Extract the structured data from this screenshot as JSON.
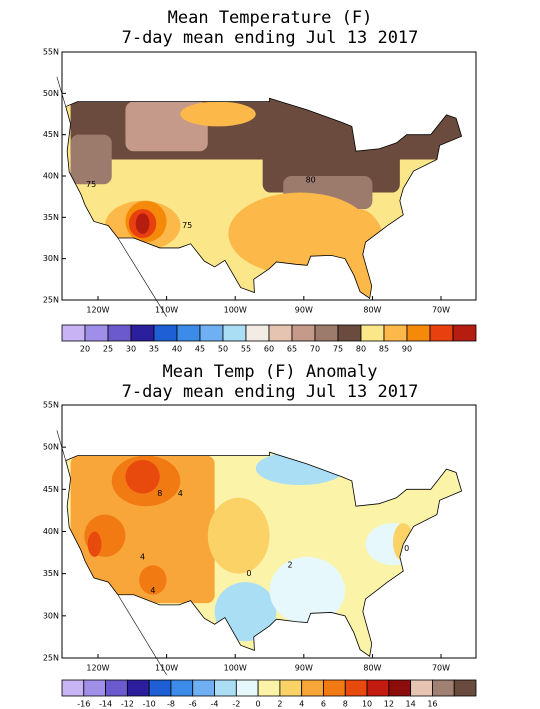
{
  "panels": [
    {
      "title": [
        "Mean Temperature (F)",
        "7-day mean ending Jul 13 2017"
      ],
      "lat_labels": [
        "55N",
        "50N",
        "45N",
        "40N",
        "35N",
        "30N",
        "25N"
      ],
      "lon_labels": [
        "120W",
        "110W",
        "100W",
        "90W",
        "80W",
        "70W"
      ],
      "colorbar": {
        "labels": [
          "20",
          "25",
          "30",
          "35",
          "40",
          "45",
          "50",
          "55",
          "60",
          "65",
          "70",
          "75",
          "80",
          "85",
          "90"
        ],
        "colors": [
          "#c8b4f5",
          "#9f8fe8",
          "#6a5acd",
          "#2c1f9e",
          "#1f5fd6",
          "#3d8be8",
          "#6fb0f2",
          "#a9def5",
          "#f2ece4",
          "#e6c4b2",
          "#c59a8a",
          "#9c7a6c",
          "#6b4b3e",
          "#fbe68a",
          "#fdb84a",
          "#f58a0a",
          "#e8400e",
          "#b41d10"
        ]
      },
      "contour_labels": [
        "75",
        "75",
        "80"
      ]
    },
    {
      "title": [
        "Mean Temp (F) Anomaly",
        "7-day mean ending Jul 13 2017"
      ],
      "lat_labels": [
        "55N",
        "50N",
        "45N",
        "40N",
        "35N",
        "30N",
        "25N"
      ],
      "lon_labels": [
        "120W",
        "110W",
        "100W",
        "90W",
        "80W",
        "70W"
      ],
      "colorbar": {
        "labels": [
          "-16",
          "-14",
          "-12",
          "-10",
          "-8",
          "-6",
          "-4",
          "-2",
          "0",
          "2",
          "4",
          "6",
          "8",
          "10",
          "12",
          "14",
          "16"
        ],
        "colors": [
          "#c8b4f5",
          "#9f8fe8",
          "#6a5acd",
          "#2c1f9e",
          "#1f5fd6",
          "#3d8be8",
          "#6fb0f2",
          "#a9def5",
          "#e6f8fb",
          "#fbf3a8",
          "#fbd266",
          "#f8a63a",
          "#f27a12",
          "#e84a0e",
          "#c41a10",
          "#8c0c0c",
          "#e6c4b2",
          "#a08072",
          "#6b4b3e"
        ]
      },
      "contour_labels": [
        "8",
        "4",
        "4",
        "2",
        "0",
        "4",
        "0"
      ]
    }
  ]
}
